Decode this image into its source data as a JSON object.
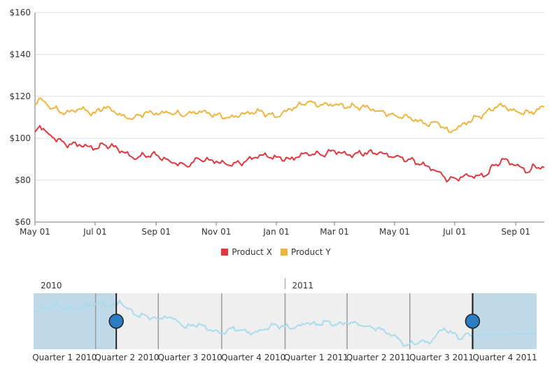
{
  "chart_data": {
    "type": "line",
    "title": "",
    "xlabel": "",
    "ylabel": "",
    "ylim": [
      60,
      160
    ],
    "xlim": [
      "2010-05-01",
      "2011-09-30"
    ],
    "y_ticks": [
      "$60",
      "$80",
      "$100",
      "$120",
      "$140",
      "$160"
    ],
    "x_ticks": [
      "May 01",
      "Jul 01",
      "Sep 01",
      "Nov 01",
      "Jan 01",
      "Mar 01",
      "May 01",
      "Jul 01",
      "Sep 01"
    ],
    "grid": "horizontal",
    "legend": "bottom",
    "series": [
      {
        "name": "Product X",
        "color": "#e0383e",
        "x": [
          "2010-05-01",
          "2010-05-06",
          "2010-05-15",
          "2010-06-01",
          "2010-06-15",
          "2010-07-01",
          "2010-07-10",
          "2010-07-20",
          "2010-08-01",
          "2010-08-10",
          "2010-08-20",
          "2010-09-01",
          "2010-09-15",
          "2010-10-01",
          "2010-10-15",
          "2010-11-01",
          "2010-11-15",
          "2010-12-01",
          "2010-12-15",
          "2011-01-01",
          "2011-01-15",
          "2011-02-01",
          "2011-02-15",
          "2011-03-01",
          "2011-03-15",
          "2011-04-01",
          "2011-04-15",
          "2011-05-01",
          "2011-05-15",
          "2011-06-01",
          "2011-06-15",
          "2011-06-25",
          "2011-07-01",
          "2011-07-15",
          "2011-08-01",
          "2011-08-10",
          "2011-08-20",
          "2011-09-01",
          "2011-09-15",
          "2011-09-20",
          "2011-09-30"
        ],
        "values": [
          103,
          106,
          102,
          97,
          97,
          95,
          97,
          96,
          93,
          90,
          92,
          92,
          89,
          87,
          90,
          89,
          87,
          89,
          92,
          91,
          90,
          93,
          92,
          94,
          92,
          93,
          93,
          91,
          90,
          87,
          84,
          80,
          81,
          82,
          82,
          87,
          90,
          87,
          84,
          87,
          86
        ]
      },
      {
        "name": "Product Y",
        "color": "#f0b43c",
        "x": [
          "2010-05-01",
          "2010-05-05",
          "2010-05-15",
          "2010-06-01",
          "2010-06-15",
          "2010-07-01",
          "2010-07-10",
          "2010-07-20",
          "2010-08-01",
          "2010-08-10",
          "2010-08-20",
          "2010-09-01",
          "2010-09-15",
          "2010-10-01",
          "2010-10-15",
          "2010-11-01",
          "2010-11-15",
          "2010-12-01",
          "2010-12-15",
          "2011-01-01",
          "2011-01-15",
          "2011-02-01",
          "2011-02-15",
          "2011-03-01",
          "2011-03-15",
          "2011-04-01",
          "2011-04-15",
          "2011-05-01",
          "2011-05-15",
          "2011-06-01",
          "2011-06-15",
          "2011-06-25",
          "2011-07-01",
          "2011-07-15",
          "2011-08-01",
          "2011-08-15",
          "2011-09-01",
          "2011-09-15",
          "2011-09-30"
        ],
        "values": [
          116,
          119,
          115,
          112,
          114,
          112,
          115,
          113,
          110,
          110,
          112,
          112,
          112,
          111,
          113,
          111,
          110,
          112,
          113,
          110,
          114,
          117,
          116,
          116,
          115,
          115,
          113,
          111,
          110,
          107,
          107,
          103,
          104,
          108,
          112,
          116,
          113,
          112,
          115
        ]
      }
    ]
  },
  "navigator": {
    "year_labels": [
      "2010",
      "2011"
    ],
    "quarter_labels": [
      "Quarter 1 2010",
      "Quarter 2 2010",
      "Quarter 3 2010",
      "Quarter 4 2010",
      "Quarter 1 2011",
      "Quarter 2 2011",
      "Quarter 3 2011",
      "Quarter 4 2011"
    ],
    "selected_range": [
      "2010-05-01",
      "2011-09-30"
    ],
    "line_color": "#a8dbec",
    "shade_color": "#bfd9e8",
    "track_color": "#efefef",
    "thumb_color": "#2a7cc4"
  }
}
